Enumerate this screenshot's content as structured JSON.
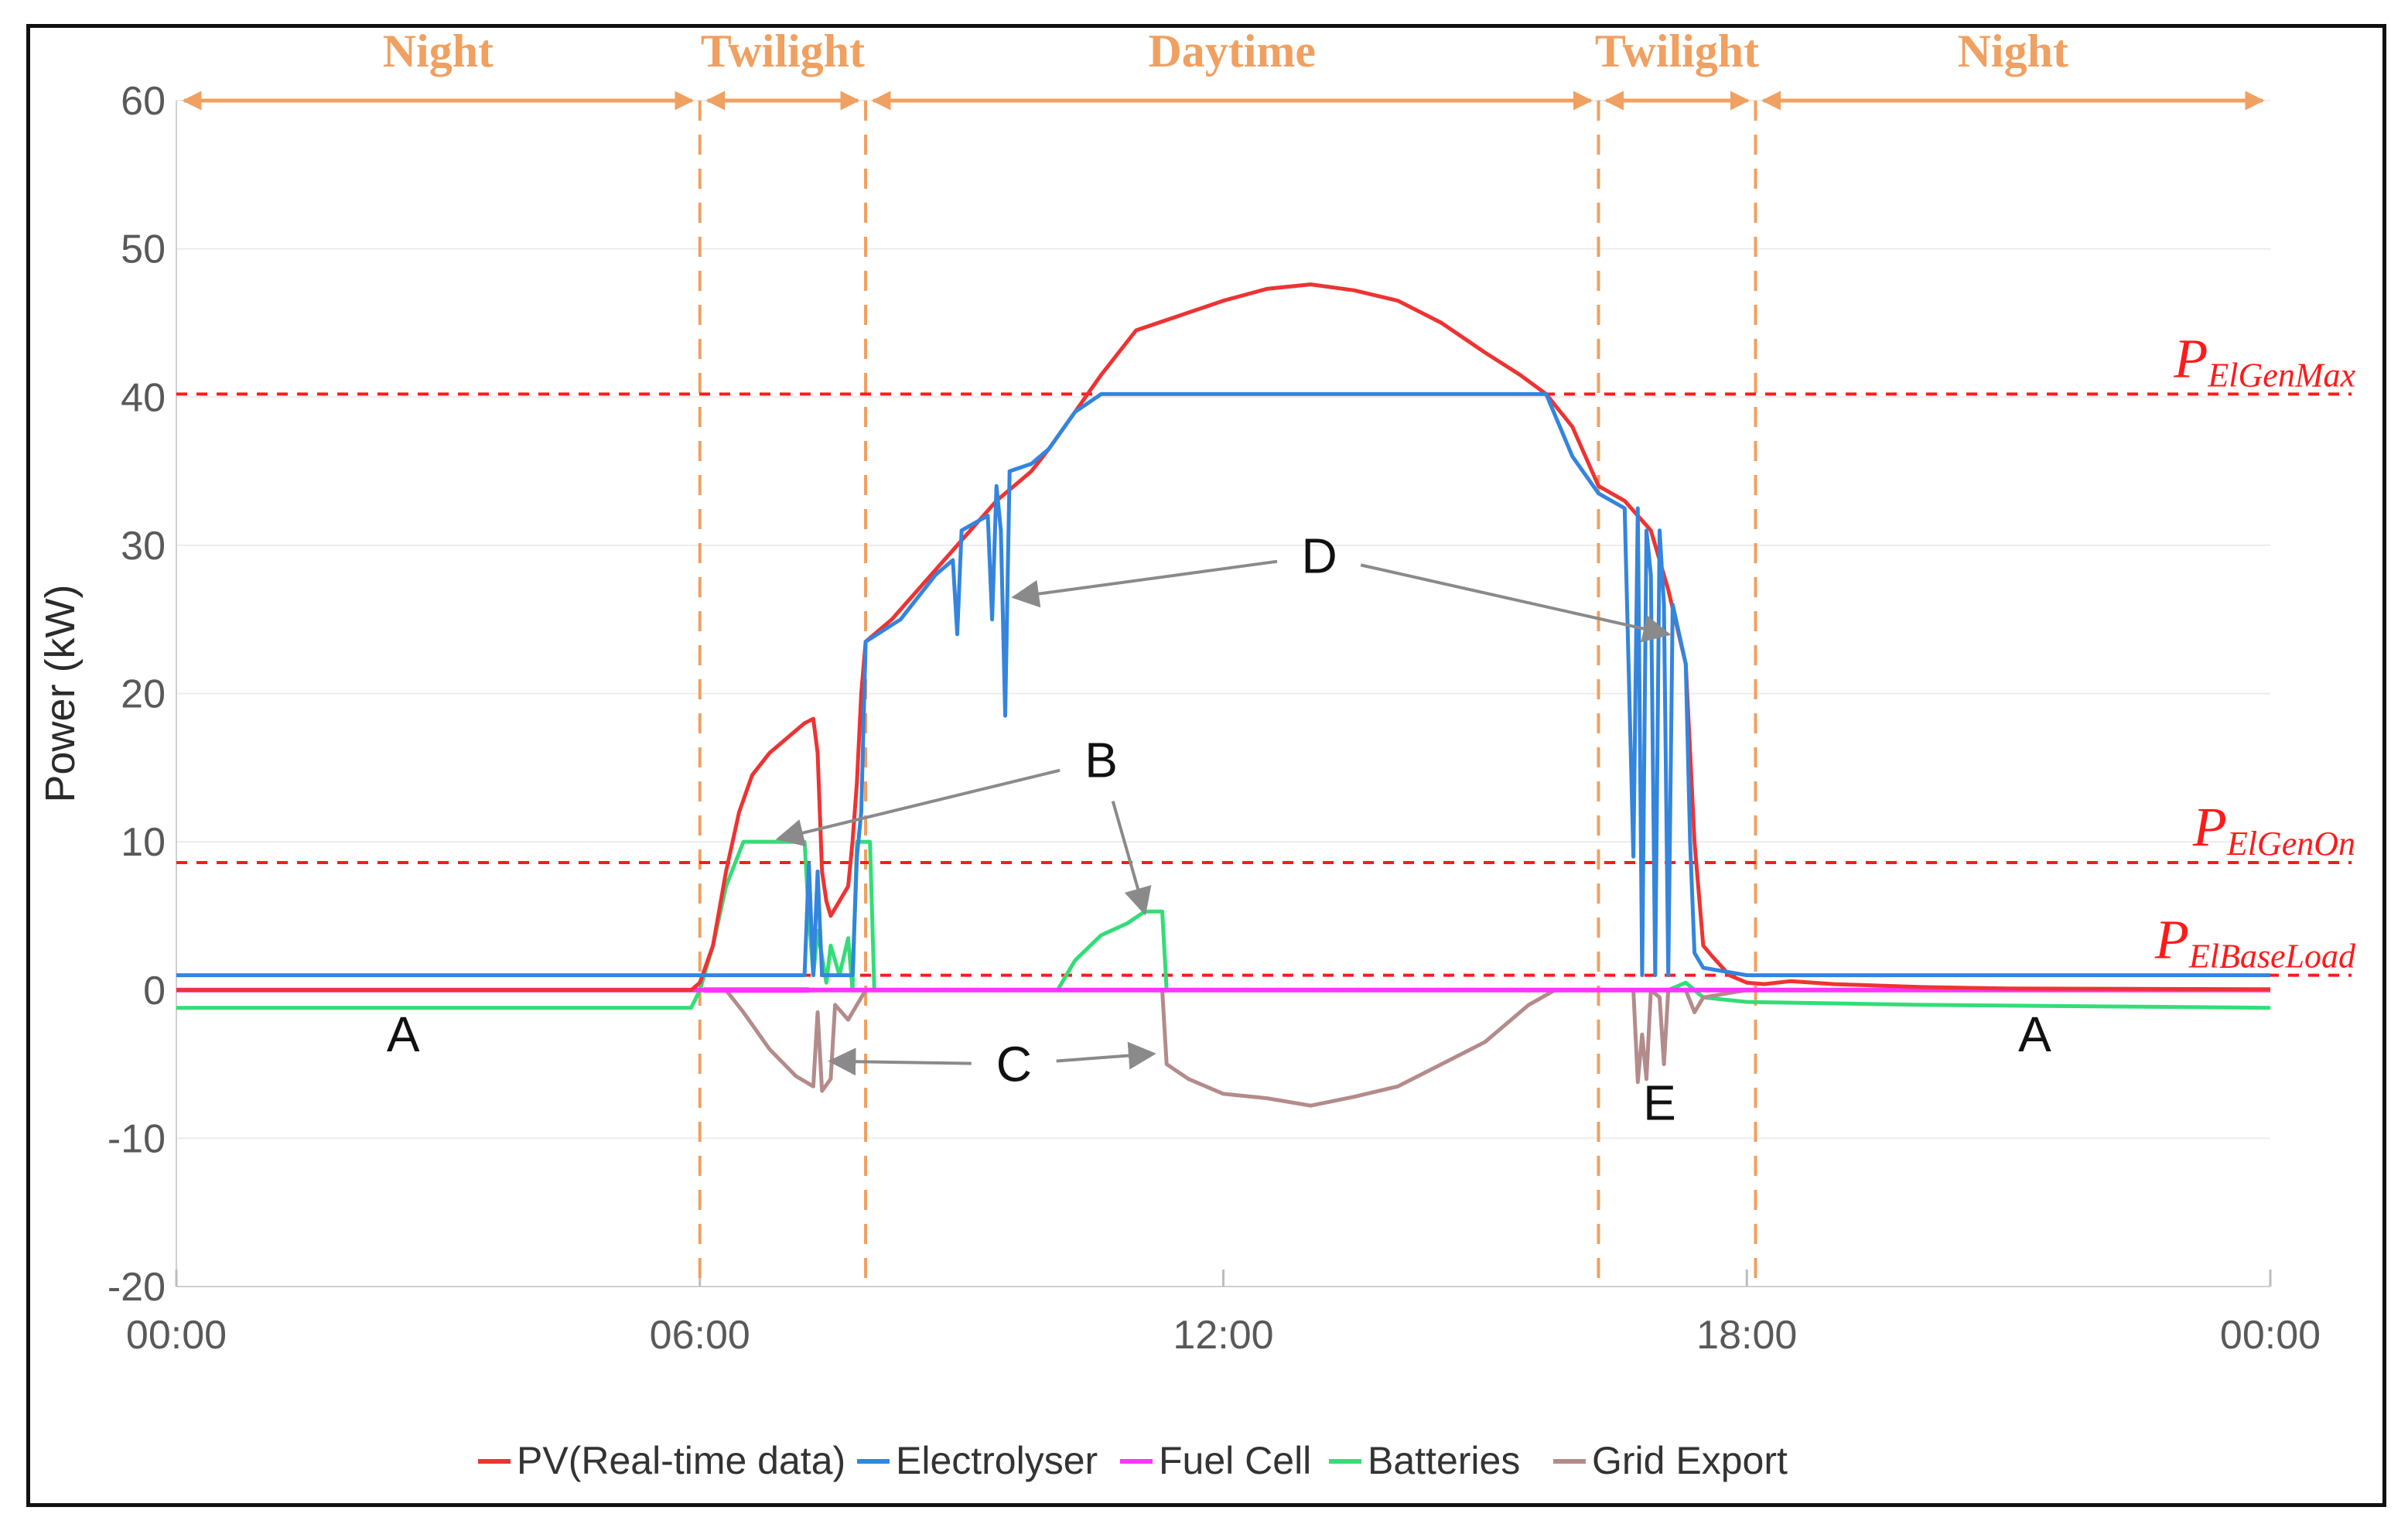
{
  "chart_data": {
    "type": "line",
    "ylabel": "Power (kW)",
    "xlabel": "",
    "x_unit": "hours",
    "xlim": [
      0,
      24
    ],
    "ylim": [
      -20,
      60
    ],
    "y_ticks": [
      60,
      50,
      40,
      30,
      20,
      10,
      0,
      -10,
      -20
    ],
    "x_ticks": [
      {
        "value": 0,
        "label": "00:00"
      },
      {
        "value": 6,
        "label": "06:00"
      },
      {
        "value": 12,
        "label": "12:00"
      },
      {
        "value": 18,
        "label": "18:00"
      },
      {
        "value": 24,
        "label": "00:00"
      }
    ],
    "grid": "horizontal",
    "legend_position": "bottom",
    "phases": [
      {
        "label": "Night",
        "start": 0,
        "end": 6
      },
      {
        "label": "Twilight",
        "start": 6,
        "end": 7.9
      },
      {
        "label": "Daytime",
        "start": 7.9,
        "end": 16.3
      },
      {
        "label": "Twilight",
        "start": 16.3,
        "end": 18.1
      },
      {
        "label": "Night",
        "start": 18.1,
        "end": 24
      }
    ],
    "phase_color": "#f0a060",
    "reference_lines": [
      {
        "name": "P",
        "sub": "ElGenMax",
        "value": 40.2
      },
      {
        "name": "P",
        "sub": "ElGenOn",
        "value": 8.6
      },
      {
        "name": "P",
        "sub": "ElBaseLoad",
        "value": 1.0
      }
    ],
    "reference_color": "#ff1a1a",
    "series": [
      {
        "name": "PV(Real-time data)",
        "color": "#ee3333",
        "points": [
          [
            0,
            0
          ],
          [
            5.9,
            0
          ],
          [
            6.0,
            0.5
          ],
          [
            6.15,
            3
          ],
          [
            6.3,
            8
          ],
          [
            6.45,
            12
          ],
          [
            6.6,
            14.5
          ],
          [
            6.8,
            16
          ],
          [
            7.0,
            17
          ],
          [
            7.2,
            18
          ],
          [
            7.3,
            18.3
          ],
          [
            7.35,
            16
          ],
          [
            7.4,
            8
          ],
          [
            7.45,
            6
          ],
          [
            7.5,
            5
          ],
          [
            7.6,
            6
          ],
          [
            7.7,
            7
          ],
          [
            7.75,
            10
          ],
          [
            7.8,
            14
          ],
          [
            7.85,
            20
          ],
          [
            7.9,
            23.5
          ],
          [
            8.2,
            25
          ],
          [
            8.5,
            27
          ],
          [
            8.8,
            29
          ],
          [
            9.1,
            31
          ],
          [
            9.4,
            33
          ],
          [
            9.8,
            35
          ],
          [
            10.0,
            36.5
          ],
          [
            10.3,
            39
          ],
          [
            10.6,
            41.5
          ],
          [
            11.0,
            44.5
          ],
          [
            11.5,
            45.5
          ],
          [
            12.0,
            46.5
          ],
          [
            12.5,
            47.3
          ],
          [
            13.0,
            47.6
          ],
          [
            13.5,
            47.2
          ],
          [
            14.0,
            46.5
          ],
          [
            14.5,
            45
          ],
          [
            15.0,
            43
          ],
          [
            15.4,
            41.5
          ],
          [
            15.7,
            40.2
          ],
          [
            16.0,
            38
          ],
          [
            16.3,
            34
          ],
          [
            16.6,
            33
          ],
          [
            16.9,
            31
          ],
          [
            17.1,
            27
          ],
          [
            17.3,
            22
          ],
          [
            17.4,
            10
          ],
          [
            17.5,
            3
          ],
          [
            17.6,
            2.3
          ],
          [
            17.8,
            1
          ],
          [
            18.0,
            0.5
          ],
          [
            18.2,
            0.4
          ],
          [
            18.5,
            0.6
          ],
          [
            19.0,
            0.4
          ],
          [
            20,
            0.2
          ],
          [
            21,
            0.1
          ],
          [
            24,
            0.05
          ]
        ]
      },
      {
        "name": "Electrolyser",
        "color": "#3385dd",
        "points": [
          [
            0,
            1
          ],
          [
            7.2,
            1
          ],
          [
            7.25,
            8.5
          ],
          [
            7.3,
            1
          ],
          [
            7.35,
            8
          ],
          [
            7.4,
            1
          ],
          [
            7.75,
            1
          ],
          [
            7.8,
            9
          ],
          [
            7.85,
            12
          ],
          [
            7.9,
            23.5
          ],
          [
            8.3,
            25
          ],
          [
            8.7,
            28
          ],
          [
            8.9,
            29
          ],
          [
            8.95,
            24
          ],
          [
            9.0,
            31
          ],
          [
            9.3,
            32
          ],
          [
            9.35,
            25
          ],
          [
            9.4,
            34
          ],
          [
            9.45,
            31
          ],
          [
            9.5,
            18.5
          ],
          [
            9.55,
            35
          ],
          [
            9.8,
            35.5
          ],
          [
            10.0,
            36.5
          ],
          [
            10.3,
            39
          ],
          [
            10.6,
            40.2
          ],
          [
            15.7,
            40.2
          ],
          [
            16.0,
            36
          ],
          [
            16.3,
            33.5
          ],
          [
            16.6,
            32.5
          ],
          [
            16.7,
            9
          ],
          [
            16.75,
            32.5
          ],
          [
            16.8,
            1
          ],
          [
            16.85,
            31
          ],
          [
            16.9,
            28
          ],
          [
            16.95,
            1
          ],
          [
            17.0,
            31
          ],
          [
            17.05,
            26
          ],
          [
            17.1,
            1
          ],
          [
            17.15,
            26
          ],
          [
            17.3,
            22
          ],
          [
            17.35,
            10
          ],
          [
            17.4,
            2.5
          ],
          [
            17.5,
            1.5
          ],
          [
            18,
            1
          ],
          [
            24,
            1
          ]
        ]
      },
      {
        "name": "Fuel Cell",
        "color": "#ff33ff",
        "points": [
          [
            0,
            0
          ],
          [
            24,
            0
          ]
        ]
      },
      {
        "name": "Batteries",
        "color": "#33dd77",
        "points": [
          [
            0,
            -1.2
          ],
          [
            5.9,
            -1.2
          ],
          [
            6.0,
            0
          ],
          [
            6.15,
            3
          ],
          [
            6.3,
            7
          ],
          [
            6.5,
            10
          ],
          [
            7.2,
            10
          ],
          [
            7.25,
            5
          ],
          [
            7.3,
            1
          ],
          [
            7.35,
            4
          ],
          [
            7.45,
            0.5
          ],
          [
            7.5,
            3
          ],
          [
            7.6,
            1
          ],
          [
            7.7,
            3.5
          ],
          [
            7.75,
            0
          ],
          [
            7.8,
            10
          ],
          [
            7.95,
            10
          ],
          [
            8.0,
            0
          ],
          [
            10.1,
            0
          ],
          [
            10.3,
            2
          ],
          [
            10.6,
            3.7
          ],
          [
            10.9,
            4.5
          ],
          [
            11.1,
            5.3
          ],
          [
            11.3,
            5.3
          ],
          [
            11.35,
            0
          ],
          [
            17.1,
            0
          ],
          [
            17.3,
            0.5
          ],
          [
            17.5,
            -0.5
          ],
          [
            18.0,
            -0.8
          ],
          [
            19,
            -0.9
          ],
          [
            20,
            -1.0
          ],
          [
            24,
            -1.2
          ]
        ]
      },
      {
        "name": "Grid Export",
        "color": "#b48b8b",
        "points": [
          [
            0,
            0
          ],
          [
            6.3,
            0
          ],
          [
            6.5,
            -1.5
          ],
          [
            6.8,
            -4
          ],
          [
            7.1,
            -5.8
          ],
          [
            7.3,
            -6.5
          ],
          [
            7.35,
            -1.5
          ],
          [
            7.4,
            -6.8
          ],
          [
            7.5,
            -6
          ],
          [
            7.55,
            -1
          ],
          [
            7.7,
            -2
          ],
          [
            7.8,
            -1
          ],
          [
            7.9,
            0
          ],
          [
            11.3,
            0
          ],
          [
            11.35,
            -5
          ],
          [
            11.6,
            -6
          ],
          [
            12.0,
            -7
          ],
          [
            12.5,
            -7.3
          ],
          [
            13.0,
            -7.8
          ],
          [
            13.5,
            -7.2
          ],
          [
            14.0,
            -6.5
          ],
          [
            14.5,
            -5
          ],
          [
            15.0,
            -3.5
          ],
          [
            15.5,
            -1
          ],
          [
            15.8,
            0
          ],
          [
            16.7,
            0
          ],
          [
            16.75,
            -6.2
          ],
          [
            16.8,
            -3
          ],
          [
            16.85,
            -6
          ],
          [
            16.9,
            0
          ],
          [
            17.0,
            -0.5
          ],
          [
            17.05,
            -5
          ],
          [
            17.1,
            0
          ],
          [
            17.3,
            0
          ],
          [
            17.4,
            -1.5
          ],
          [
            17.5,
            -0.5
          ],
          [
            18,
            0
          ],
          [
            24,
            0
          ]
        ]
      }
    ],
    "annotations": [
      {
        "text": "A",
        "x": 2.6,
        "y": -3.0
      },
      {
        "text": "A",
        "x": 21.3,
        "y": -3.0
      },
      {
        "text": "B",
        "x": 10.6,
        "y": 15.5,
        "arrows_to": [
          [
            6.9,
            10.2
          ],
          [
            11.1,
            5.2
          ]
        ]
      },
      {
        "text": "C",
        "x": 9.6,
        "y": -5.0,
        "arrows_to": [
          [
            7.5,
            -4.8
          ],
          [
            11.2,
            -4.3
          ]
        ]
      },
      {
        "text": "D",
        "x": 13.1,
        "y": 29.3,
        "arrows_to": [
          [
            9.6,
            26.5
          ],
          [
            17.1,
            24.0
          ]
        ]
      },
      {
        "text": "E",
        "x": 17.0,
        "y": -7.6
      }
    ]
  }
}
